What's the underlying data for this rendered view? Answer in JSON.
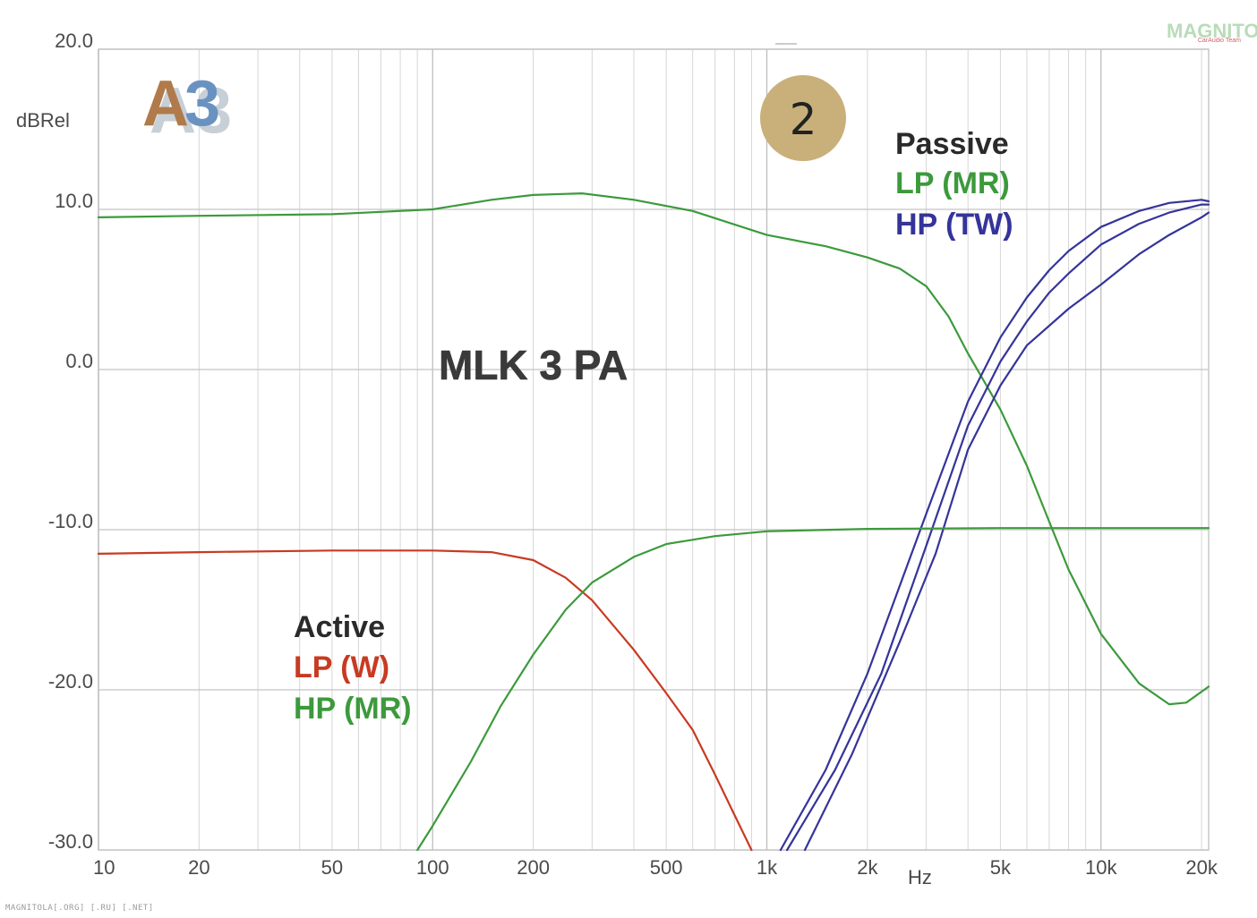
{
  "chart_data": {
    "type": "line",
    "title": "MLK 3 PA",
    "xlabel": "Hz",
    "ylabel": "dBRel",
    "xscale": "log",
    "xlim": [
      10,
      21000
    ],
    "ylim": [
      -30,
      20
    ],
    "grid": true,
    "x_ticks": [
      "10",
      "20",
      "50",
      "100",
      "200",
      "500",
      "1k",
      "2k",
      "5k",
      "10k",
      "20k"
    ],
    "y_ticks": [
      "20.0",
      "10.0",
      "0.0",
      "-10.0",
      "-20.0",
      "-30.0"
    ],
    "badge": "2",
    "logo": "A3",
    "groups": [
      {
        "heading": "Passive",
        "entries": [
          {
            "label": "LP (MR)",
            "color": "#3c9a3c"
          },
          {
            "label": "HP (TW)",
            "color": "#34349a"
          }
        ]
      },
      {
        "heading": "Active",
        "entries": [
          {
            "label": "LP (W)",
            "color": "#c83a22"
          },
          {
            "label": "HP (MR)",
            "color": "#3c9a3c"
          }
        ]
      }
    ],
    "series": [
      {
        "color": "#3c9a3c",
        "points": [
          [
            10,
            9.5
          ],
          [
            20,
            9.6
          ],
          [
            50,
            9.7
          ],
          [
            100,
            10.0
          ],
          [
            150,
            10.6
          ],
          [
            200,
            10.9
          ],
          [
            280,
            11.0
          ],
          [
            400,
            10.6
          ],
          [
            600,
            9.9
          ],
          [
            1000,
            8.4
          ],
          [
            1500,
            7.7
          ],
          [
            2000,
            7.0
          ],
          [
            2500,
            6.3
          ],
          [
            3000,
            5.2
          ],
          [
            3500,
            3.3
          ],
          [
            4000,
            1.0
          ],
          [
            5000,
            -2.5
          ],
          [
            6000,
            -6.0
          ],
          [
            7000,
            -9.5
          ],
          [
            8000,
            -12.5
          ],
          [
            10000,
            -16.5
          ],
          [
            13000,
            -19.6
          ],
          [
            16000,
            -20.9
          ],
          [
            18000,
            -20.8
          ],
          [
            21000,
            -19.8
          ]
        ]
      },
      {
        "color": "#34349a",
        "points": [
          [
            1100,
            -30.0
          ],
          [
            1500,
            -25.0
          ],
          [
            2000,
            -19.0
          ],
          [
            3000,
            -9.0
          ],
          [
            4000,
            -2.0
          ],
          [
            5000,
            2.0
          ],
          [
            6000,
            4.5
          ],
          [
            7000,
            6.2
          ],
          [
            8000,
            7.4
          ],
          [
            10000,
            8.9
          ],
          [
            13000,
            9.9
          ],
          [
            16000,
            10.4
          ],
          [
            20000,
            10.6
          ],
          [
            21000,
            10.5
          ]
        ]
      },
      {
        "color": "#34349a",
        "points": [
          [
            1150,
            -30.0
          ],
          [
            1600,
            -25.0
          ],
          [
            2200,
            -19.0
          ],
          [
            3000,
            -11.0
          ],
          [
            4000,
            -3.5
          ],
          [
            5000,
            0.5
          ],
          [
            6000,
            3.0
          ],
          [
            7000,
            4.8
          ],
          [
            8000,
            6.0
          ],
          [
            10000,
            7.8
          ],
          [
            13000,
            9.1
          ],
          [
            16000,
            9.8
          ],
          [
            20000,
            10.3
          ],
          [
            21000,
            10.3
          ]
        ]
      },
      {
        "color": "#34349a",
        "points": [
          [
            1300,
            -30.0
          ],
          [
            1800,
            -24.0
          ],
          [
            2500,
            -17.0
          ],
          [
            3200,
            -11.5
          ],
          [
            4000,
            -5.0
          ],
          [
            5000,
            -1.0
          ],
          [
            6000,
            1.5
          ],
          [
            8000,
            3.8
          ],
          [
            10000,
            5.3
          ],
          [
            13000,
            7.2
          ],
          [
            16000,
            8.4
          ],
          [
            20000,
            9.5
          ],
          [
            21000,
            9.8
          ]
        ]
      },
      {
        "color": "#c83a22",
        "points": [
          [
            10,
            -11.5
          ],
          [
            20,
            -11.4
          ],
          [
            50,
            -11.3
          ],
          [
            100,
            -11.3
          ],
          [
            150,
            -11.4
          ],
          [
            200,
            -11.9
          ],
          [
            250,
            -13.0
          ],
          [
            300,
            -14.4
          ],
          [
            400,
            -17.5
          ],
          [
            500,
            -20.2
          ],
          [
            600,
            -22.5
          ],
          [
            700,
            -25.3
          ],
          [
            800,
            -27.8
          ],
          [
            900,
            -30.0
          ]
        ]
      },
      {
        "color": "#3c9a3c",
        "points": [
          [
            90,
            -30.0
          ],
          [
            100,
            -28.5
          ],
          [
            130,
            -24.5
          ],
          [
            160,
            -21.0
          ],
          [
            200,
            -17.8
          ],
          [
            250,
            -15.0
          ],
          [
            300,
            -13.3
          ],
          [
            400,
            -11.7
          ],
          [
            500,
            -10.9
          ],
          [
            700,
            -10.4
          ],
          [
            1000,
            -10.1
          ],
          [
            2000,
            -9.95
          ],
          [
            5000,
            -9.9
          ],
          [
            10000,
            -9.9
          ],
          [
            21000,
            -9.9
          ]
        ]
      }
    ]
  },
  "watermarks": {
    "top_right": "MAGNITOLA",
    "top_right_sub": "CarAudio Team",
    "bottom_left": "MAGNITOLA[.ORG] [.RU] [.NET]"
  }
}
